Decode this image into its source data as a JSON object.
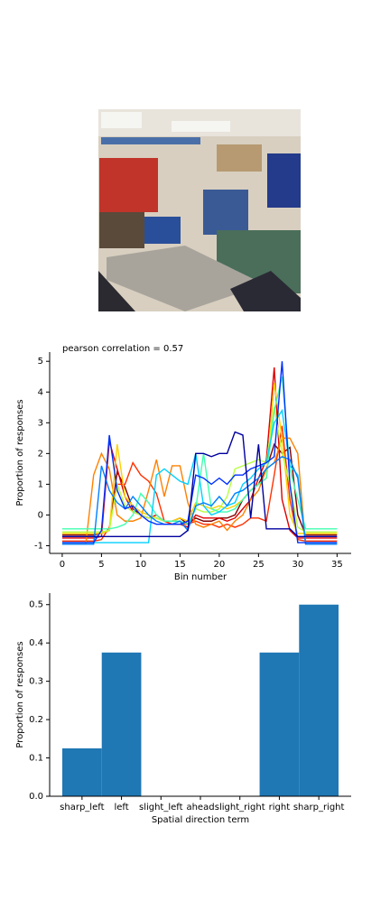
{
  "chart_data": [
    {
      "type": "line",
      "title": "pearson correlation = 0.57",
      "xlabel": "Bin number",
      "ylabel": "Proportion of responses",
      "x": [
        0,
        1,
        2,
        3,
        4,
        5,
        6,
        7,
        8,
        9,
        10,
        11,
        12,
        13,
        14,
        15,
        16,
        17,
        18,
        19,
        20,
        21,
        22,
        23,
        24,
        25,
        26,
        27,
        28,
        29,
        30,
        31,
        32,
        33,
        34,
        35
      ],
      "xlim": [
        -1.6,
        36.8
      ],
      "ylim": [
        -1.25,
        5.3
      ],
      "xticks": [
        0,
        5,
        10,
        15,
        20,
        25,
        30,
        35
      ],
      "yticks": [
        -1,
        0,
        1,
        2,
        3,
        4,
        5
      ],
      "series": [
        {
          "color": "#800000",
          "values": [
            -0.65,
            -0.65,
            -0.65,
            -0.65,
            -0.65,
            -0.6,
            -0.5,
            1.4,
            0.9,
            0.2,
            0.0,
            -0.1,
            -0.1,
            -0.2,
            -0.2,
            -0.1,
            -0.3,
            -0.1,
            -0.2,
            -0.2,
            -0.1,
            -0.1,
            0.0,
            0.5,
            0.8,
            1.0,
            1.5,
            2.3,
            2.0,
            2.2,
            0.0,
            -0.65,
            -0.65,
            -0.65,
            -0.65,
            -0.65
          ]
        },
        {
          "color": "#e00000",
          "values": [
            -0.75,
            -0.75,
            -0.75,
            -0.75,
            -0.75,
            -0.7,
            2.4,
            1.5,
            0.6,
            0.1,
            0.0,
            -0.1,
            0.0,
            -0.2,
            -0.3,
            -0.3,
            -0.4,
            0.0,
            -0.1,
            -0.1,
            -0.1,
            -0.2,
            -0.1,
            0.2,
            0.5,
            1.2,
            1.8,
            4.8,
            0.5,
            -0.5,
            -0.75,
            -0.75,
            -0.75,
            -0.75,
            -0.75,
            -0.75
          ]
        },
        {
          "color": "#ff3000",
          "values": [
            -0.85,
            -0.85,
            -0.85,
            -0.85,
            -0.85,
            -0.8,
            -0.4,
            1.0,
            1.0,
            1.7,
            1.3,
            1.1,
            0.7,
            -0.2,
            -0.3,
            -0.3,
            -0.3,
            -0.2,
            -0.3,
            -0.3,
            -0.4,
            -0.3,
            -0.4,
            -0.3,
            -0.1,
            -0.1,
            -0.2,
            1.3,
            2.9,
            0.5,
            -0.8,
            -0.85,
            -0.85,
            -0.85,
            -0.85,
            -0.85
          ]
        },
        {
          "color": "#ff8000",
          "values": [
            -0.95,
            -0.95,
            -0.95,
            -0.95,
            1.3,
            2.0,
            1.5,
            0.0,
            -0.2,
            -0.2,
            -0.1,
            0.8,
            1.8,
            0.6,
            1.6,
            1.6,
            0.4,
            -0.3,
            -0.4,
            -0.3,
            -0.2,
            -0.5,
            -0.2,
            0.0,
            0.5,
            0.8,
            1.5,
            1.7,
            2.5,
            2.5,
            2.0,
            -0.95,
            -0.95,
            -0.95,
            -0.95,
            -0.95
          ]
        },
        {
          "color": "#ffd000",
          "values": [
            -0.6,
            -0.6,
            -0.6,
            -0.6,
            -0.6,
            -0.6,
            -0.5,
            2.3,
            0.6,
            0.3,
            0.1,
            0.0,
            -0.1,
            -0.2,
            -0.2,
            -0.1,
            -0.2,
            0.4,
            0.3,
            0.2,
            0.3,
            0.2,
            0.3,
            0.5,
            0.8,
            1.0,
            1.2,
            4.3,
            2.5,
            0.0,
            -0.6,
            -0.6,
            -0.6,
            -0.6,
            -0.6,
            -0.6
          ]
        },
        {
          "color": "#b8ff40",
          "values": [
            -0.55,
            -0.55,
            -0.55,
            -0.55,
            -0.55,
            -0.55,
            -0.5,
            1.0,
            0.3,
            0.1,
            0.0,
            -0.1,
            -0.1,
            -0.2,
            -0.2,
            -0.2,
            -0.3,
            0.2,
            0.1,
            0.1,
            0.2,
            0.6,
            1.5,
            1.6,
            1.7,
            1.8,
            1.7,
            3.5,
            2.0,
            1.0,
            -0.4,
            -0.55,
            -0.55,
            -0.55,
            -0.55,
            -0.55
          ]
        },
        {
          "color": "#40ffb0",
          "values": [
            -0.45,
            -0.45,
            -0.45,
            -0.45,
            -0.45,
            -0.45,
            -0.45,
            -0.4,
            -0.3,
            0.0,
            0.7,
            0.4,
            0.0,
            -0.2,
            -0.2,
            -0.2,
            -0.3,
            0.2,
            2.0,
            0.2,
            0.1,
            0.1,
            0.2,
            0.5,
            0.8,
            1.0,
            1.2,
            3.4,
            4.5,
            1.5,
            0.5,
            -0.45,
            -0.45,
            -0.45,
            -0.45,
            -0.45
          ]
        },
        {
          "color": "#00d0ff",
          "values": [
            -0.9,
            -0.9,
            -0.9,
            -0.9,
            -0.9,
            -0.9,
            -0.9,
            -0.9,
            -0.9,
            -0.9,
            -0.9,
            -0.9,
            1.3,
            1.5,
            1.3,
            1.1,
            1.0,
            2.0,
            0.3,
            0.0,
            0.1,
            0.3,
            0.4,
            1.0,
            1.2,
            1.5,
            1.7,
            3.0,
            3.4,
            1.6,
            1.3,
            -0.9,
            -0.9,
            -0.9,
            -0.9,
            -0.9
          ]
        },
        {
          "color": "#0080ff",
          "values": [
            -0.95,
            -0.95,
            -0.95,
            -0.95,
            -0.95,
            1.6,
            0.8,
            0.4,
            0.2,
            0.6,
            0.3,
            0.0,
            -0.2,
            -0.3,
            -0.3,
            -0.2,
            -0.5,
            0.3,
            0.4,
            0.3,
            0.6,
            0.3,
            0.7,
            0.8,
            1.0,
            1.2,
            1.5,
            1.7,
            1.9,
            1.8,
            1.2,
            -0.95,
            -0.95,
            -0.95,
            -0.95,
            -0.95
          ]
        },
        {
          "color": "#0030ff",
          "values": [
            -0.9,
            -0.9,
            -0.9,
            -0.9,
            -0.9,
            -0.5,
            2.6,
            0.8,
            0.2,
            0.3,
            0.0,
            -0.2,
            -0.3,
            -0.3,
            -0.3,
            -0.3,
            -0.2,
            1.3,
            1.2,
            1.0,
            1.2,
            1.0,
            1.3,
            1.3,
            1.5,
            1.6,
            1.7,
            1.9,
            5.0,
            1.0,
            -0.9,
            -0.9,
            -0.9,
            -0.9,
            -0.9,
            -0.9
          ]
        },
        {
          "color": "#0000a0",
          "values": [
            -0.7,
            -0.7,
            -0.7,
            -0.7,
            -0.7,
            -0.7,
            -0.7,
            -0.7,
            -0.7,
            -0.7,
            -0.7,
            -0.7,
            -0.7,
            -0.7,
            -0.7,
            -0.7,
            -0.5,
            2.0,
            2.0,
            1.9,
            2.0,
            2.0,
            2.7,
            2.6,
            -0.1,
            2.3,
            -0.45,
            -0.45,
            -0.45,
            -0.45,
            -0.7,
            -0.7,
            -0.7,
            -0.7,
            -0.7,
            -0.7
          ]
        }
      ]
    },
    {
      "type": "bar",
      "xlabel": "Spatial direction term",
      "ylabel": "Proportion of responses",
      "categories": [
        "sharp_left",
        "left",
        "slight_left",
        "ahead",
        "slight_right",
        "right",
        "sharp_right"
      ],
      "values": [
        0.125,
        0.375,
        0,
        0,
        0,
        0.375,
        0.5
      ],
      "color": "#1f77b4",
      "ylim": [
        0,
        0.53
      ],
      "yticks": [
        {
          "value": 0,
          "label": "0.0"
        },
        0.1,
        0.2,
        0.3,
        0.4,
        0.5
      ]
    }
  ]
}
